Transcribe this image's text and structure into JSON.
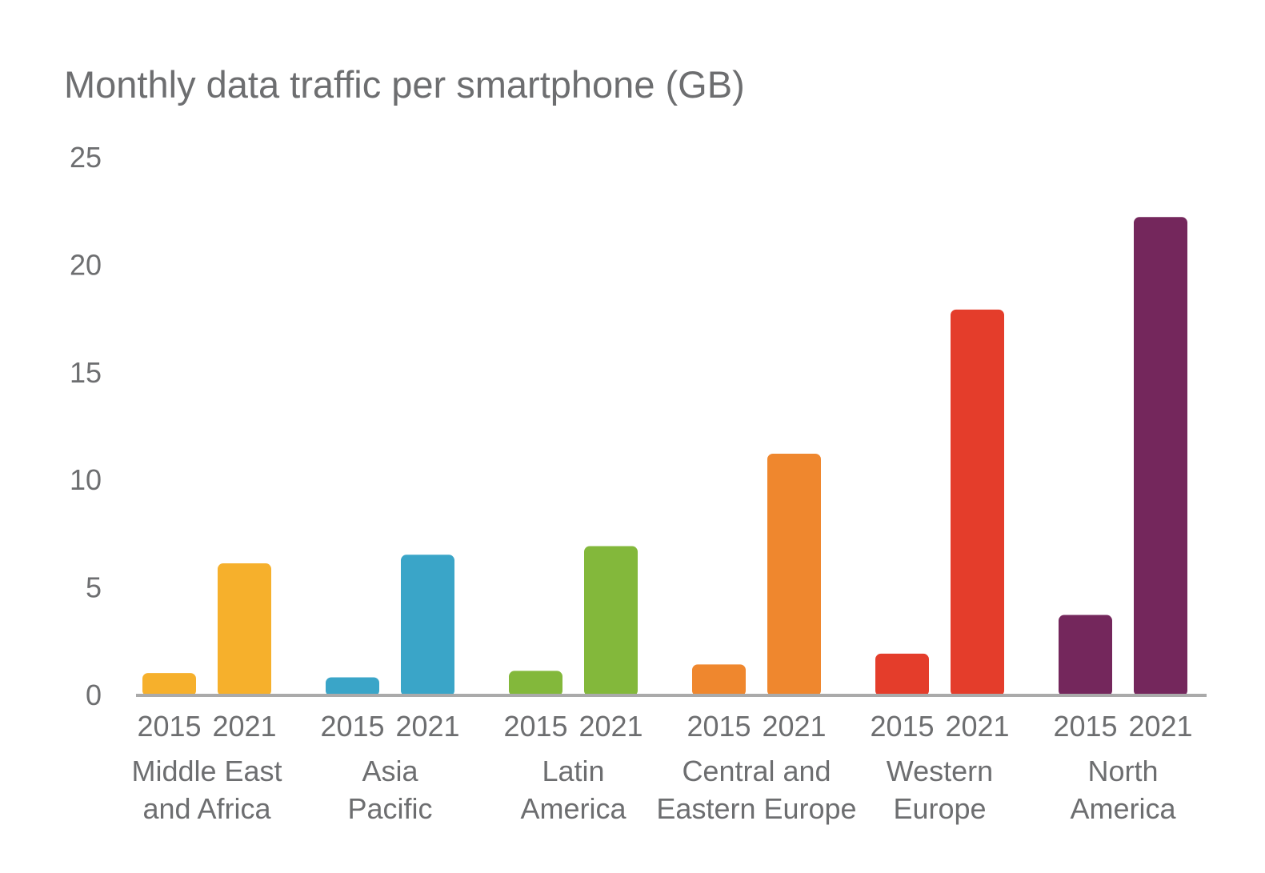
{
  "chart_data": {
    "type": "bar",
    "title": "Monthly data traffic per smartphone (GB)",
    "xlabel": "",
    "ylabel": "",
    "ylim": [
      0,
      25
    ],
    "yticks": [
      "0",
      "5",
      "10",
      "15",
      "20",
      "25"
    ],
    "grid": false,
    "legend": "none",
    "year_labels": [
      "2015",
      "2021"
    ],
    "categories": [
      {
        "label_lines": [
          "Middle East",
          "and Africa"
        ],
        "color": "#f6b02c",
        "values": [
          1.0,
          6.1
        ]
      },
      {
        "label_lines": [
          "Asia",
          "Pacific"
        ],
        "color": "#3aa5c8",
        "values": [
          0.8,
          6.5
        ]
      },
      {
        "label_lines": [
          "Latin",
          "America"
        ],
        "color": "#83b83b",
        "values": [
          1.1,
          6.9
        ]
      },
      {
        "label_lines": [
          "Central and",
          "Eastern Europe"
        ],
        "color": "#ef872e",
        "values": [
          1.4,
          11.2
        ]
      },
      {
        "label_lines": [
          "Western",
          "Europe"
        ],
        "color": "#e43d2b",
        "values": [
          1.9,
          17.9
        ]
      },
      {
        "label_lines": [
          "North",
          "America"
        ],
        "color": "#74275c",
        "values": [
          3.7,
          22.2
        ]
      }
    ],
    "axis_color": "#aaaaaa",
    "text_color": "#6d6e70"
  }
}
